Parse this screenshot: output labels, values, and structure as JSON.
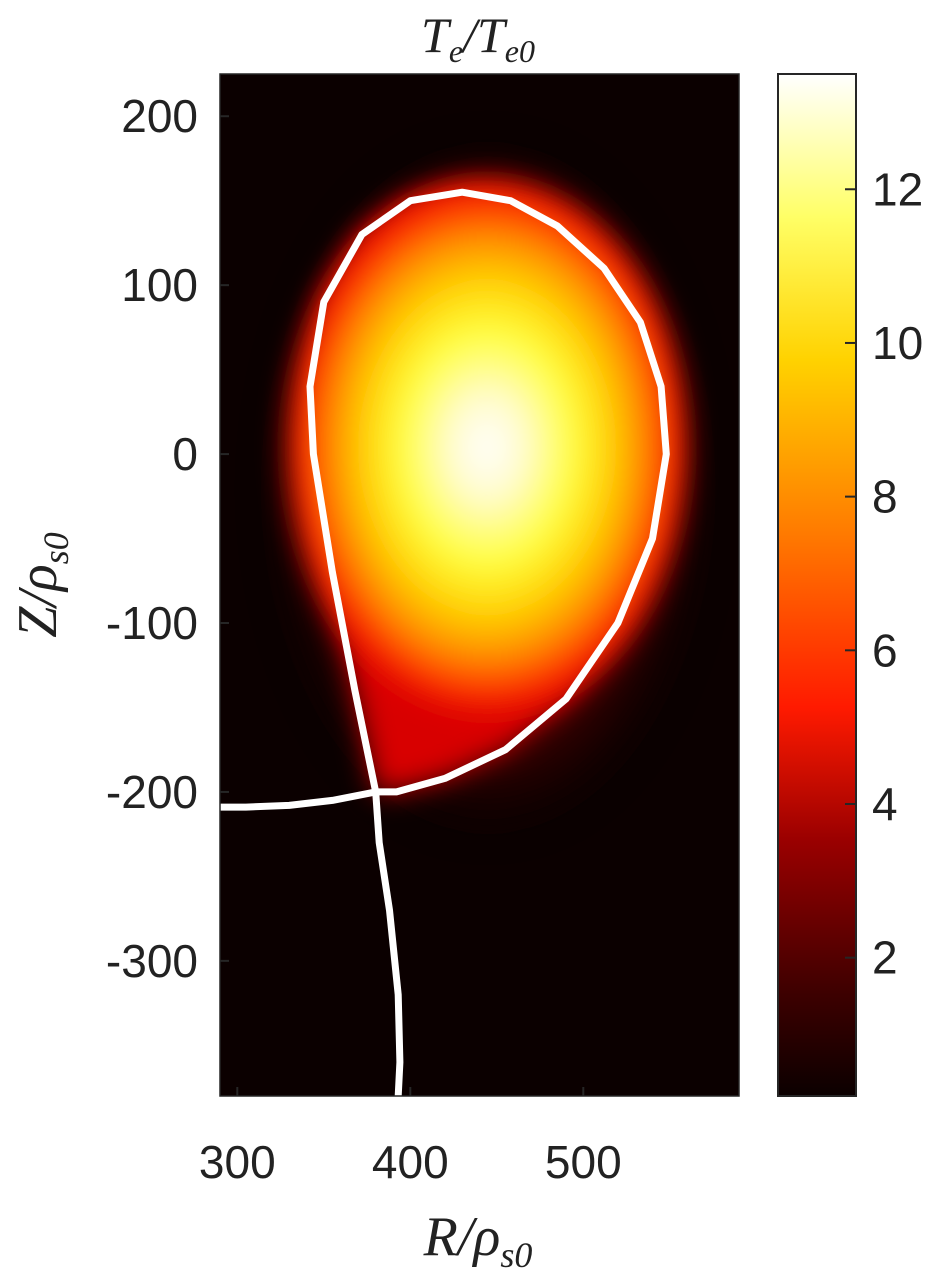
{
  "chart_data": {
    "type": "heatmap",
    "title": "Te/Te0",
    "title_parts": {
      "main": "T",
      "sub_main": "e",
      "slash": "/",
      "denom": "T",
      "sub_denom": "e0"
    },
    "xlabel": "R/ρs0",
    "xlabel_parts": {
      "main": "R/ρ",
      "sub": "s0"
    },
    "ylabel": "Z/ρs0",
    "ylabel_parts": {
      "main": "Z/ρ",
      "sub": "s0"
    },
    "xlim": [
      290,
      590
    ],
    "ylim": [
      -380,
      225
    ],
    "x_ticks": [
      300,
      400,
      500
    ],
    "x_tick_labels": [
      "300",
      "400",
      "500"
    ],
    "y_ticks": [
      200,
      100,
      0,
      -100,
      -200,
      -300
    ],
    "y_tick_labels": [
      "200",
      "100",
      "0",
      "-100",
      "-200",
      "-300"
    ],
    "colorbar": {
      "range": [
        0.2,
        13.5
      ],
      "ticks": [
        2,
        4,
        6,
        8,
        10,
        12
      ],
      "tick_labels": [
        "2",
        "4",
        "6",
        "8",
        "10",
        "12"
      ],
      "colormap": "hot"
    },
    "field": {
      "peak_value": 13.5,
      "peak_location": {
        "R": 449,
        "Z": 10
      },
      "background_value": 0.2
    },
    "separatrix": {
      "color": "#ffffff",
      "core": [
        [
          380,
          -200
        ],
        [
          368,
          -140
        ],
        [
          355,
          -70
        ],
        [
          344,
          0
        ],
        [
          342,
          40
        ],
        [
          350,
          90
        ],
        [
          372,
          130
        ],
        [
          400,
          150
        ],
        [
          430,
          155
        ],
        [
          458,
          150
        ],
        [
          485,
          135
        ],
        [
          512,
          110
        ],
        [
          533,
          78
        ],
        [
          545,
          40
        ],
        [
          548,
          0
        ],
        [
          540,
          -50
        ],
        [
          520,
          -100
        ],
        [
          490,
          -145
        ],
        [
          455,
          -175
        ],
        [
          420,
          -192
        ],
        [
          392,
          -200
        ],
        [
          380,
          -200
        ]
      ],
      "outer_leg": [
        [
          380,
          -200
        ],
        [
          382,
          -230
        ],
        [
          388,
          -270
        ],
        [
          393,
          -320
        ],
        [
          394,
          -360
        ],
        [
          393,
          -380
        ]
      ],
      "inner_leg": [
        [
          380,
          -200
        ],
        [
          355,
          -205
        ],
        [
          330,
          -208
        ],
        [
          305,
          -209
        ],
        [
          290,
          -209
        ]
      ]
    }
  }
}
